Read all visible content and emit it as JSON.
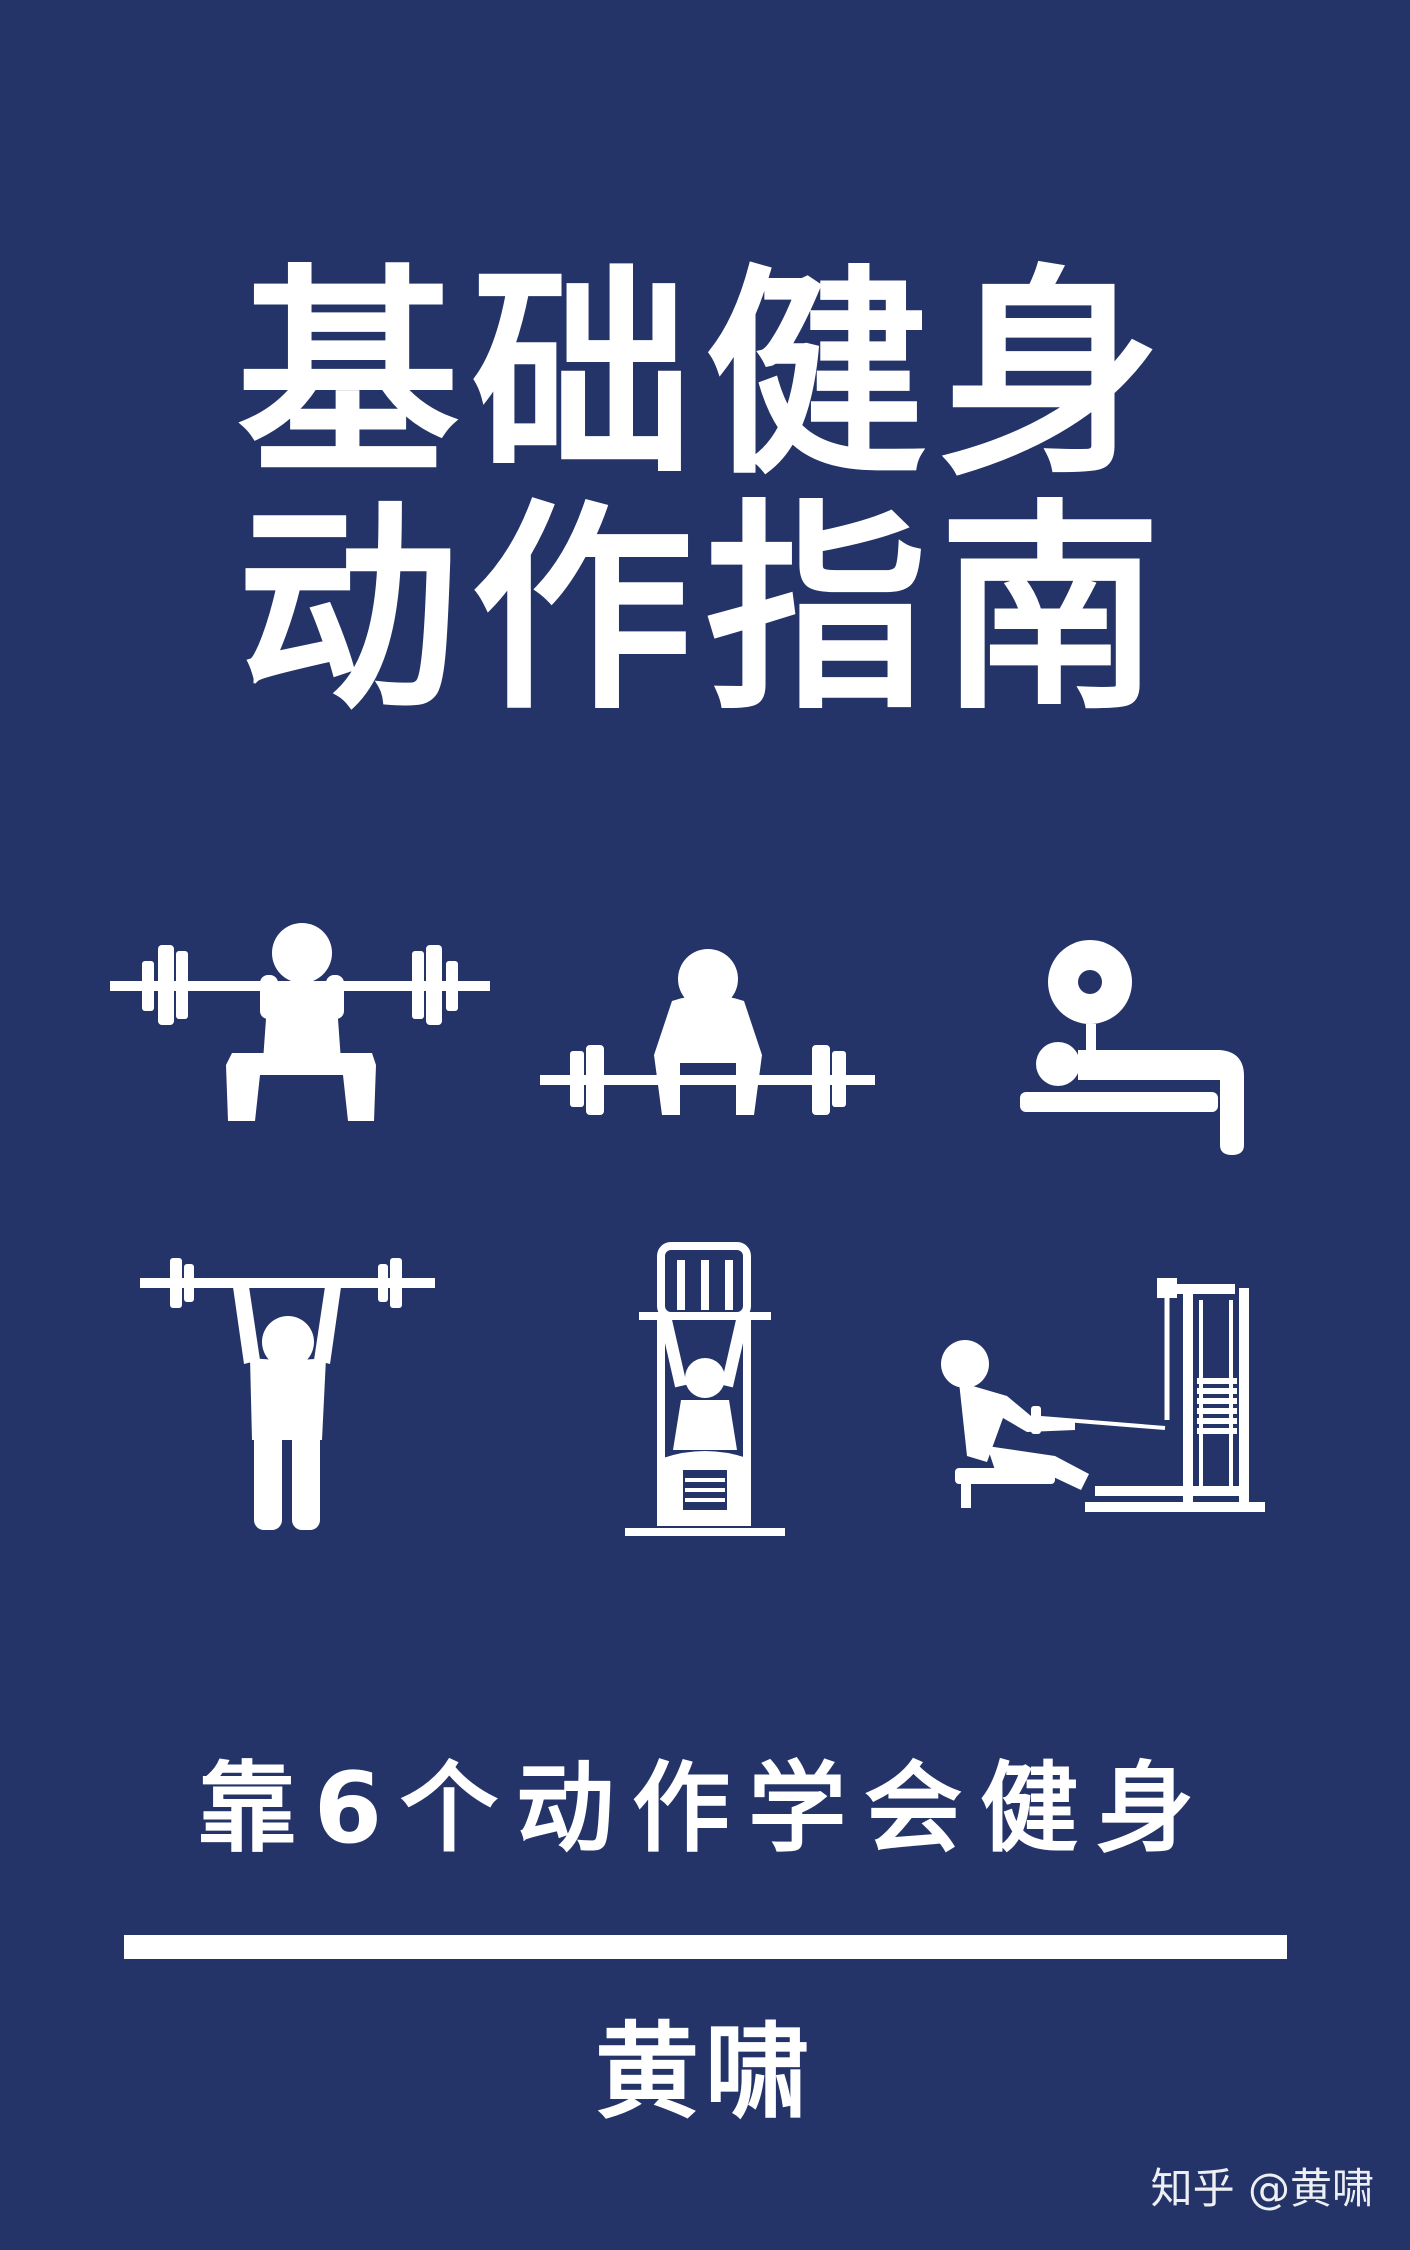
{
  "cover": {
    "title_line_1": "基础健身",
    "title_line_2": "动作指南",
    "subtitle": "靠6个动作学会健身",
    "author": "黄啸",
    "watermark": "知乎 @黄啸",
    "background_color": "#243469",
    "foreground_color": "#ffffff"
  },
  "icons": [
    "barbell-squat-icon",
    "deadlift-icon",
    "bench-press-icon",
    "overhead-press-icon",
    "lat-pulldown-icon",
    "seated-cable-row-icon"
  ]
}
